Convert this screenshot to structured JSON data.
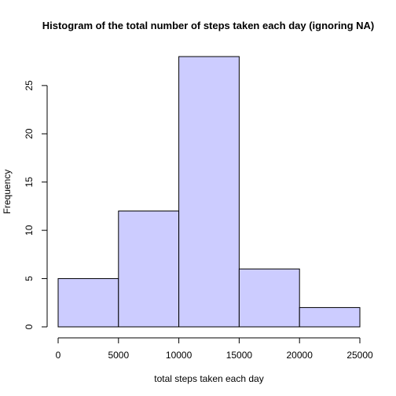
{
  "chart_data": {
    "type": "bar",
    "title": "Histogram of the total number of steps taken each day (ignoring NA)",
    "xlabel": "total steps taken each day",
    "ylabel": "Frequency",
    "bins": [
      {
        "from": 0,
        "to": 5000,
        "count": 5
      },
      {
        "from": 5000,
        "to": 10000,
        "count": 12
      },
      {
        "from": 10000,
        "to": 15000,
        "count": 28
      },
      {
        "from": 15000,
        "to": 20000,
        "count": 6
      },
      {
        "from": 20000,
        "to": 25000,
        "count": 2
      }
    ],
    "xlim": [
      0,
      25000
    ],
    "ylim": [
      0,
      28
    ],
    "x_ticks": [
      0,
      5000,
      10000,
      15000,
      20000,
      25000
    ],
    "y_ticks": [
      0,
      5,
      10,
      15,
      20,
      25
    ],
    "bar_color": "#ccccff",
    "grid": false,
    "legend": "none"
  }
}
